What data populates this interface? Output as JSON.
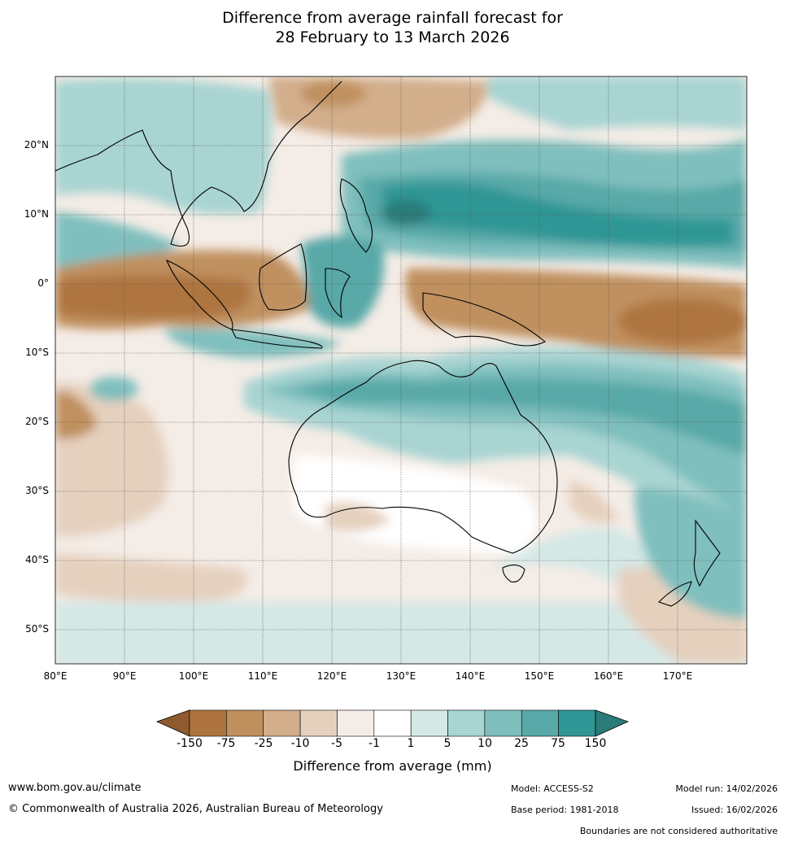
{
  "title": {
    "line1": "Difference from average rainfall forecast for",
    "line2": "28 February to 13 March 2026"
  },
  "axes": {
    "lat_labels": [
      "20°N",
      "10°N",
      "0°",
      "10°S",
      "20°S",
      "30°S",
      "40°S",
      "50°S"
    ],
    "lon_labels": [
      "80°E",
      "90°E",
      "100°E",
      "110°E",
      "120°E",
      "130°E",
      "140°E",
      "150°E",
      "160°E",
      "170°E"
    ]
  },
  "legend": {
    "title": "Difference from average (mm)",
    "labels": [
      "-150",
      "-75",
      "-25",
      "-10",
      "-5",
      "-1",
      "1",
      "5",
      "10",
      "25",
      "75",
      "150"
    ],
    "colors": [
      "#ae7440",
      "#c0905f",
      "#d2ae8b",
      "#e5d0be",
      "#f4ece6",
      "#ffffff",
      "#d4e8e6",
      "#a8d4d2",
      "#7fbfbe",
      "#58a9a8",
      "#2f9695"
    ],
    "extend_low_color": "#8e5a2e",
    "extend_high_color": "#2b7b78"
  },
  "footer": {
    "website": "www.bom.gov.au/climate",
    "copyright": "© Commonwealth of Australia 2026, Australian Bureau of Meteorology",
    "model": "Model: ACCESS-S2",
    "base_period": "Base period: 1981-2018",
    "model_run": "Model run: 14/02/2026",
    "issued": "Issued: 16/02/2026",
    "disclaimer": "Boundaries are not considered authoritative"
  }
}
